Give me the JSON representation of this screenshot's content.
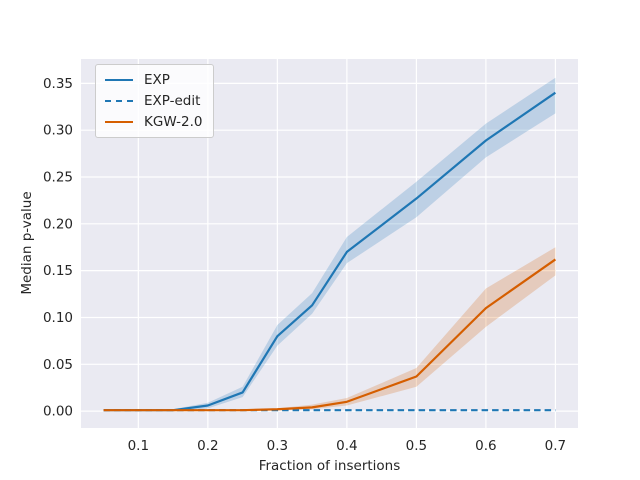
{
  "figure": {
    "background": "#ffffff",
    "axes_background": "#eaeaf2",
    "grid_color": "#ffffff",
    "text_color": "#262626"
  },
  "chart_data": {
    "type": "line",
    "title": "",
    "xlabel": "Fraction of insertions",
    "ylabel": "Median p-value",
    "xlim": [
      0.0175,
      0.7325
    ],
    "ylim": [
      -0.018,
      0.376
    ],
    "xticks": [
      0.1,
      0.2,
      0.3,
      0.4,
      0.5,
      0.6,
      0.7
    ],
    "xtick_labels": [
      "0.1",
      "0.2",
      "0.3",
      "0.4",
      "0.5",
      "0.6",
      "0.7"
    ],
    "yticks": [
      0.0,
      0.05,
      0.1,
      0.15,
      0.2,
      0.25,
      0.3,
      0.35
    ],
    "ytick_labels": [
      "0.00",
      "0.05",
      "0.10",
      "0.15",
      "0.20",
      "0.25",
      "0.30",
      "0.35"
    ],
    "grid": true,
    "legend_position": "upper-left",
    "band_opacity": 0.22,
    "x": [
      0.05,
      0.1,
      0.15,
      0.2,
      0.25,
      0.3,
      0.35,
      0.4,
      0.5,
      0.6,
      0.7
    ],
    "series": [
      {
        "name": "EXP",
        "color": "#1f77b4",
        "line_style": "solid",
        "values": [
          0.001,
          0.001,
          0.001,
          0.006,
          0.02,
          0.08,
          0.113,
          0.17,
          0.227,
          0.289,
          0.34
        ],
        "band_lower": [
          0.001,
          0.001,
          0.0,
          0.003,
          0.015,
          0.07,
          0.104,
          0.158,
          0.207,
          0.271,
          0.318
        ],
        "band_upper": [
          0.001,
          0.001,
          0.002,
          0.009,
          0.026,
          0.092,
          0.126,
          0.186,
          0.245,
          0.307,
          0.356
        ]
      },
      {
        "name": "EXP-edit",
        "color": "#1f77b4",
        "line_style": "dashed",
        "values": [
          0.001,
          0.001,
          0.001,
          0.001,
          0.001,
          0.001,
          0.001,
          0.001,
          0.001,
          0.001,
          0.001
        ]
      },
      {
        "name": "KGW-2.0",
        "color": "#d55e00",
        "line_style": "solid",
        "values": [
          0.001,
          0.001,
          0.001,
          0.001,
          0.001,
          0.002,
          0.004,
          0.01,
          0.037,
          0.11,
          0.162
        ],
        "band_lower": [
          0.001,
          0.001,
          0.001,
          0.001,
          0.001,
          0.001,
          0.002,
          0.006,
          0.026,
          0.09,
          0.145
        ],
        "band_upper": [
          0.001,
          0.001,
          0.001,
          0.001,
          0.001,
          0.003,
          0.007,
          0.014,
          0.046,
          0.131,
          0.175
        ]
      }
    ]
  },
  "legend": {
    "entries": [
      {
        "label": "EXP"
      },
      {
        "label": "EXP-edit"
      },
      {
        "label": "KGW-2.0"
      }
    ]
  }
}
